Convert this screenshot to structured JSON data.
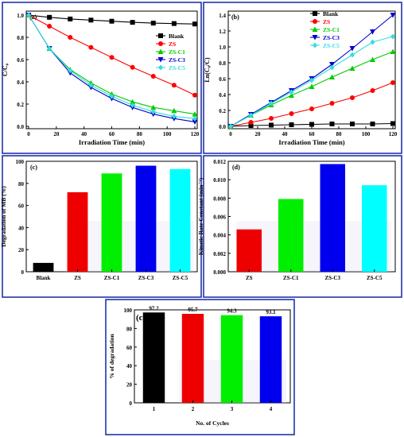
{
  "chart_data": [
    {
      "panel": "(a)",
      "type": "line",
      "xlabel": "Irradiation Time (min)",
      "ylabel": "C/C₀",
      "xlim": [
        0,
        120
      ],
      "ylim": [
        0,
        1.0
      ],
      "x_ticks": [
        "0",
        "20",
        "40",
        "60",
        "80",
        "100",
        "120"
      ],
      "y_ticks": [
        "0.0",
        "0.2",
        "0.4",
        "0.6",
        "0.8",
        "1.0"
      ],
      "legend_position": "center-right",
      "x": [
        0,
        15,
        30,
        45,
        60,
        75,
        90,
        105,
        120
      ],
      "series": [
        {
          "name": "Blank",
          "color": "#000000",
          "marker": "square",
          "values": [
            1.0,
            0.98,
            0.965,
            0.955,
            0.945,
            0.935,
            0.928,
            0.924,
            0.92
          ]
        },
        {
          "name": "ZS",
          "color": "#ff0000",
          "marker": "circle",
          "values": [
            1.0,
            0.9,
            0.8,
            0.71,
            0.62,
            0.53,
            0.45,
            0.37,
            0.28
          ]
        },
        {
          "name": "ZS-C1",
          "color": "#00cc00",
          "marker": "triangle-up",
          "values": [
            1.0,
            0.7,
            0.51,
            0.39,
            0.29,
            0.22,
            0.17,
            0.14,
            0.11
          ]
        },
        {
          "name": "ZS-C3",
          "color": "#0000cc",
          "marker": "triangle-down",
          "values": [
            1.0,
            0.7,
            0.48,
            0.35,
            0.25,
            0.17,
            0.11,
            0.07,
            0.04
          ]
        },
        {
          "name": "ZS-C5",
          "color": "#33dddd",
          "marker": "diamond",
          "values": [
            1.0,
            0.7,
            0.5,
            0.37,
            0.27,
            0.19,
            0.13,
            0.09,
            0.07
          ]
        }
      ]
    },
    {
      "panel": "(b)",
      "type": "line",
      "xlabel": "Irradiation Time (min)",
      "ylabel": "Ln(C₀/C)",
      "xlim": [
        0,
        120
      ],
      "ylim": [
        0,
        1.4
      ],
      "x_ticks": [
        "0",
        "20",
        "40",
        "60",
        "80",
        "100",
        "120"
      ],
      "y_ticks": [
        "0.0",
        "0.2",
        "0.4",
        "0.6",
        "0.8",
        "1.0",
        "1.2",
        "1.4"
      ],
      "legend_position": "top-right",
      "x": [
        0,
        15,
        30,
        45,
        60,
        75,
        90,
        105,
        120
      ],
      "series": [
        {
          "name": "Blank",
          "color": "#000000",
          "marker": "square",
          "values": [
            0.0,
            0.01,
            0.015,
            0.02,
            0.025,
            0.03,
            0.03,
            0.03,
            0.035
          ]
        },
        {
          "name": "ZS",
          "color": "#ff0000",
          "marker": "circle",
          "values": [
            0.0,
            0.05,
            0.1,
            0.16,
            0.22,
            0.29,
            0.36,
            0.45,
            0.55
          ]
        },
        {
          "name": "ZS-C1",
          "color": "#00cc00",
          "marker": "triangle-up",
          "values": [
            0.0,
            0.14,
            0.27,
            0.39,
            0.5,
            0.62,
            0.73,
            0.84,
            0.94
          ]
        },
        {
          "name": "ZS-C3",
          "color": "#0000cc",
          "marker": "triangle-down",
          "values": [
            0.0,
            0.15,
            0.3,
            0.45,
            0.6,
            0.78,
            0.98,
            1.19,
            1.4
          ]
        },
        {
          "name": "ZS-C5",
          "color": "#33dddd",
          "marker": "diamond",
          "values": [
            0.0,
            0.14,
            0.29,
            0.43,
            0.58,
            0.74,
            0.9,
            1.06,
            1.13
          ]
        }
      ]
    },
    {
      "panel": "(c)",
      "type": "bar",
      "ylabel": "Degradation of MB (%)",
      "ylim": [
        0,
        100
      ],
      "y_ticks": [
        "0",
        "20",
        "40",
        "60",
        "80",
        "100"
      ],
      "categories": [
        "Blank",
        "ZS",
        "ZS-C1",
        "ZS-C3",
        "ZS-C5"
      ],
      "values": [
        8,
        72,
        89,
        96,
        93
      ],
      "colors": [
        "#000000",
        "#ee0000",
        "#00ee00",
        "#0000ee",
        "#00ffff"
      ]
    },
    {
      "panel": "(d)",
      "type": "bar",
      "ylabel": "Kinatic Rate Constant (min⁻¹)",
      "ylim": [
        0,
        0.012
      ],
      "y_ticks": [
        "0.000",
        "0.002",
        "0.004",
        "0.006",
        "0.008",
        "0.010",
        "0.012"
      ],
      "categories": [
        "ZS",
        "ZS-C1",
        "ZS-C3",
        "ZS-C5"
      ],
      "values": [
        0.0046,
        0.0079,
        0.0117,
        0.0094
      ],
      "colors": [
        "#ee0000",
        "#00ee00",
        "#0000ee",
        "#00ffff"
      ]
    },
    {
      "panel": "(e)",
      "panel_label": "(c)",
      "type": "bar",
      "xlabel": "No. of Cycles",
      "ylabel": "% of degradation",
      "ylim": [
        0,
        100
      ],
      "y_ticks": [
        "0",
        "20",
        "40",
        "60",
        "80",
        "100"
      ],
      "categories": [
        "1",
        "2",
        "3",
        "4"
      ],
      "values": [
        97.2,
        95.7,
        94.3,
        93.1
      ],
      "data_labels": [
        "97.2",
        "95.7",
        "94.3",
        "93.1"
      ],
      "colors": [
        "#000000",
        "#ee0000",
        "#00ee00",
        "#0000ee"
      ]
    }
  ]
}
